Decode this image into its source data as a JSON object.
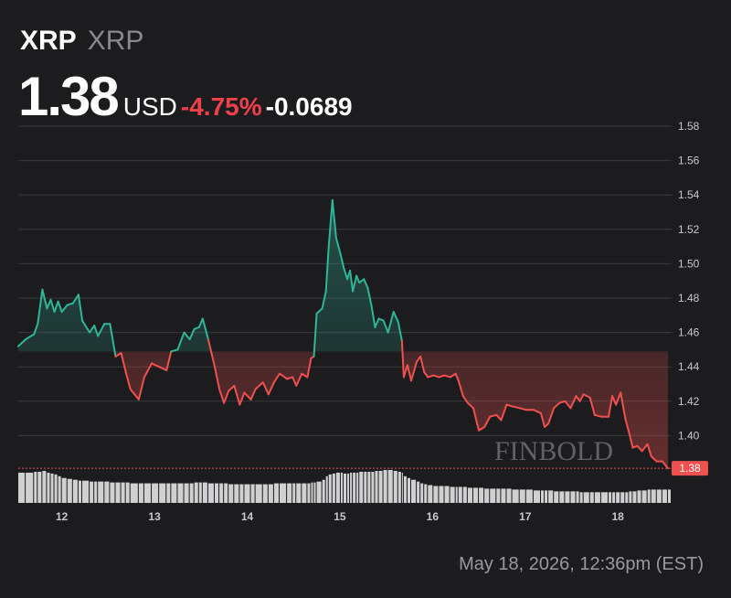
{
  "chart_data": {
    "type": "line",
    "title": "XRP",
    "subtitle": "XRP",
    "price": "1.38",
    "currency": "USD",
    "change_percent": "-4.75%",
    "change": "-0.0689",
    "timestamp": "May 18, 2026, 12:36pm (EST)",
    "watermark": "FINBOLD",
    "up_color": "#2fb597",
    "down_color": "#f0504f",
    "volume_color": "#d0d0d0",
    "grid": true,
    "xlim": [
      11.53,
      18.58
    ],
    "ylim": [
      1.38,
      1.58
    ],
    "xticks": [
      12,
      13,
      14,
      15,
      16,
      17,
      18
    ],
    "yticks": [
      {
        "value": 1.4,
        "label": "1.40"
      },
      1.42,
      1.44,
      1.46,
      1.48,
      {
        "value": 1.5,
        "label": "1.50"
      },
      1.52,
      1.54,
      1.56,
      1.58
    ],
    "x": [
      11.53,
      11.61,
      11.7,
      11.74,
      11.79,
      11.84,
      11.88,
      11.92,
      11.96,
      12.0,
      12.06,
      12.12,
      12.18,
      12.22,
      12.3,
      12.35,
      12.39,
      12.46,
      12.52,
      12.58,
      12.64,
      12.69,
      12.74,
      12.83,
      12.89,
      12.97,
      13.05,
      13.13,
      13.18,
      13.25,
      13.32,
      13.38,
      13.43,
      13.48,
      13.52,
      13.58,
      13.65,
      13.7,
      13.75,
      13.8,
      13.86,
      13.92,
      13.97,
      14.04,
      14.09,
      14.17,
      14.23,
      14.29,
      14.35,
      14.43,
      14.49,
      14.53,
      14.59,
      14.65,
      14.69,
      14.72,
      14.75,
      14.81,
      14.85,
      14.88,
      14.92,
      14.96,
      15.01,
      15.04,
      15.08,
      15.11,
      15.14,
      15.18,
      15.21,
      15.26,
      15.3,
      15.34,
      15.38,
      15.42,
      15.47,
      15.52,
      15.58,
      15.63,
      15.67,
      15.69,
      15.73,
      15.77,
      15.83,
      15.87,
      15.91,
      15.95,
      16.01,
      16.07,
      16.13,
      16.19,
      16.25,
      16.28,
      16.33,
      16.38,
      16.44,
      16.5,
      16.56,
      16.62,
      16.69,
      16.74,
      16.8,
      16.86,
      16.94,
      17.01,
      17.09,
      17.17,
      17.21,
      17.25,
      17.31,
      17.37,
      17.43,
      17.49,
      17.55,
      17.59,
      17.63,
      17.7,
      17.75,
      17.82,
      17.9,
      17.94,
      17.98,
      18.03,
      18.08,
      18.12,
      18.16,
      18.21,
      18.26,
      18.32,
      18.36,
      18.42,
      18.48,
      18.54
    ],
    "values": [
      1.452,
      1.456,
      1.459,
      1.465,
      1.485,
      1.474,
      1.479,
      1.472,
      1.478,
      1.472,
      1.476,
      1.477,
      1.482,
      1.467,
      1.46,
      1.464,
      1.458,
      1.465,
      1.465,
      1.446,
      1.448,
      1.437,
      1.427,
      1.421,
      1.434,
      1.442,
      1.44,
      1.438,
      1.449,
      1.45,
      1.46,
      1.456,
      1.462,
      1.463,
      1.468,
      1.456,
      1.44,
      1.427,
      1.419,
      1.426,
      1.429,
      1.418,
      1.425,
      1.421,
      1.427,
      1.431,
      1.424,
      1.431,
      1.436,
      1.433,
      1.434,
      1.429,
      1.436,
      1.434,
      1.445,
      1.446,
      1.471,
      1.474,
      1.484,
      1.51,
      1.537,
      1.515,
      1.505,
      1.498,
      1.491,
      1.496,
      1.484,
      1.493,
      1.489,
      1.491,
      1.486,
      1.476,
      1.463,
      1.468,
      1.467,
      1.46,
      1.472,
      1.466,
      1.455,
      1.434,
      1.441,
      1.432,
      1.443,
      1.446,
      1.437,
      1.434,
      1.435,
      1.434,
      1.435,
      1.434,
      1.436,
      1.432,
      1.423,
      1.419,
      1.416,
      1.403,
      1.405,
      1.411,
      1.412,
      1.409,
      1.418,
      1.417,
      1.416,
      1.415,
      1.415,
      1.413,
      1.405,
      1.407,
      1.416,
      1.419,
      1.42,
      1.416,
      1.423,
      1.42,
      1.424,
      1.422,
      1.412,
      1.411,
      1.411,
      1.423,
      1.418,
      1.425,
      1.41,
      1.402,
      1.393,
      1.394,
      1.391,
      1.395,
      1.388,
      1.385,
      1.385,
      1.381
    ],
    "volume": [
      34,
      34,
      35,
      35,
      36,
      34,
      33,
      32,
      30,
      28,
      27,
      26,
      25,
      25,
      24,
      24,
      24,
      24,
      23,
      23,
      23,
      23,
      22,
      22,
      22,
      22,
      22,
      22,
      22,
      22,
      22,
      22,
      23,
      23,
      23,
      22,
      22,
      22,
      22,
      21,
      21,
      21,
      21,
      21,
      21,
      21,
      21,
      22,
      22,
      22,
      22,
      22,
      22,
      22,
      23,
      23,
      24,
      26,
      30,
      32,
      33,
      34,
      34,
      33,
      33,
      34,
      34,
      34,
      35,
      35,
      35,
      35,
      36,
      36,
      37,
      37,
      36,
      35,
      34,
      30,
      28,
      26,
      24,
      22,
      21,
      20,
      19,
      19,
      19,
      18,
      18,
      18,
      18,
      17,
      17,
      17,
      16,
      16,
      16,
      16,
      16,
      15,
      15,
      15,
      14,
      14,
      14,
      14,
      13,
      13,
      13,
      13,
      13,
      12,
      12,
      12,
      12,
      12,
      12,
      12,
      12,
      12,
      12,
      13,
      13,
      14,
      14,
      15,
      15,
      15,
      15,
      15
    ]
  }
}
